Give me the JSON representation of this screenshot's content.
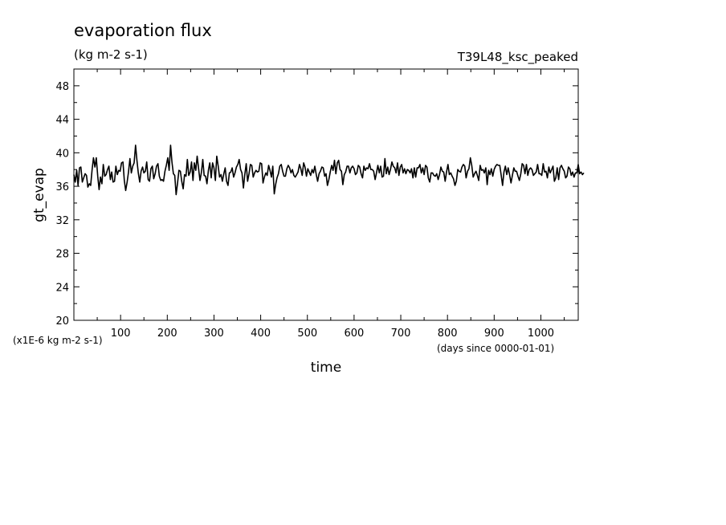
{
  "chart_data": {
    "type": "line",
    "title": "evaporation flux",
    "subtitle": "(kg m-2 s-1)",
    "run_label": "T39L48_ksc_peaked",
    "xlabel": "time",
    "x_units": "(days since 0000-01-01)",
    "ylabel": "gt_evap",
    "y_units": "(x1E-6 kg m-2 s-1)",
    "xlim": [
      0,
      1080
    ],
    "ylim": [
      20,
      50
    ],
    "x_ticks": [
      "100",
      "200",
      "300",
      "400",
      "500",
      "600",
      "700",
      "800",
      "900",
      "1000"
    ],
    "y_ticks": [
      "20",
      "24",
      "28",
      "32",
      "36",
      "40",
      "44",
      "48"
    ],
    "grid": false,
    "legend": "none",
    "line_color": "#000000",
    "series": [
      {
        "x_start": 0,
        "x_step": 3,
        "values": [
          37.4,
          36.5,
          37.9,
          36.1,
          38.2,
          38.3,
          36.5,
          37.0,
          37.5,
          37.3,
          35.9,
          36.3,
          36.1,
          38.0,
          39.4,
          38.3,
          39.4,
          37.2,
          35.6,
          37.1,
          36.3,
          38.6,
          37.2,
          37.4,
          38.0,
          38.4,
          36.8,
          37.7,
          36.5,
          36.6,
          38.4,
          37.4,
          37.9,
          37.8,
          38.8,
          38.9,
          36.7,
          35.5,
          36.5,
          37.7,
          39.3,
          37.6,
          38.4,
          38.8,
          40.9,
          39.1,
          37.6,
          36.5,
          37.8,
          38.3,
          37.6,
          37.8,
          38.9,
          36.8,
          36.6,
          38.1,
          38.4,
          36.9,
          37.5,
          38.4,
          38.7,
          37.2,
          36.7,
          36.8,
          36.6,
          37.8,
          38.5,
          39.4,
          37.9,
          40.9,
          38.9,
          37.5,
          37.3,
          35.0,
          36.4,
          37.9,
          37.8,
          36.6,
          35.7,
          37.4,
          37.2,
          39.2,
          37.3,
          37.7,
          38.9,
          36.7,
          38.8,
          37.9,
          39.6,
          38.1,
          36.7,
          37.6,
          39.2,
          37.3,
          37.2,
          36.3,
          37.9,
          38.8,
          37.0,
          38.8,
          38.2,
          36.7,
          39.6,
          38.4,
          37.1,
          37.4,
          36.6,
          37.5,
          38.2,
          36.6,
          36.1,
          37.6,
          37.7,
          38.2,
          37.1,
          37.6,
          38.3,
          38.6,
          39.2,
          38.0,
          37.6,
          35.8,
          37.4,
          38.7,
          36.6,
          37.5,
          38.6,
          38.5,
          37.1,
          37.6,
          37.9,
          37.7,
          37.8,
          38.8,
          38.7,
          36.4,
          37.1,
          37.6,
          37.3,
          38.5,
          37.9,
          37.1,
          38.4,
          35.1,
          36.2,
          37.0,
          37.5,
          38.4,
          38.6,
          37.8,
          37.2,
          37.2,
          38.1,
          38.5,
          38.2,
          37.6,
          38.0,
          37.3,
          37.1,
          37.4,
          37.7,
          38.6,
          38.1,
          37.3,
          38.8,
          38.3,
          37.2,
          38.1,
          37.7,
          37.3,
          38.0,
          37.6,
          38.4,
          37.4,
          36.6,
          37.5,
          37.8,
          38.3,
          38.2,
          37.2,
          37.5,
          36.1,
          36.8,
          37.7,
          38.5,
          37.9,
          39.1,
          37.5,
          38.8,
          39.1,
          38.0,
          37.8,
          36.2,
          37.4,
          37.7,
          38.4,
          38.4,
          37.6,
          38.2,
          38.4,
          38.1,
          37.4,
          37.6,
          38.5,
          38.3,
          37.5,
          37.0,
          38.4,
          37.9,
          38.2,
          38.1,
          38.7,
          38.0,
          38.0,
          37.8,
          36.8,
          37.6,
          38.5,
          37.6,
          38.4,
          37.1,
          37.2,
          39.3,
          37.5,
          38.3,
          37.4,
          38.0,
          38.9,
          38.4,
          38.2,
          37.6,
          38.8,
          37.3,
          38.3,
          38.6,
          37.6,
          38.1,
          37.5,
          38.0,
          37.9,
          37.6,
          38.1,
          37.0,
          38.2,
          37.1,
          38.2,
          38.2,
          38.6,
          37.6,
          38.2,
          37.4,
          38.5,
          38.3,
          37.0,
          36.5,
          37.6,
          37.6,
          37.3,
          37.2,
          37.5,
          36.8,
          37.4,
          38.3,
          37.8,
          37.7,
          36.6,
          37.7,
          38.6,
          37.4,
          37.6,
          37.2,
          36.9,
          36.1,
          36.6,
          38.0,
          37.8,
          37.7,
          38.3,
          38.6,
          38.4,
          37.0,
          37.8,
          38.1,
          39.4,
          38.5,
          37.1,
          37.5,
          37.8,
          37.3,
          36.7,
          38.5,
          37.9,
          38.0,
          37.6,
          38.2,
          36.2,
          37.9,
          37.4,
          38.1,
          37.2,
          38.0,
          38.4,
          38.6,
          38.5,
          38.5,
          37.3,
          36.1,
          37.7,
          38.4,
          37.4,
          38.2,
          37.4,
          36.4,
          37.3,
          38.2,
          37.8,
          37.8,
          37.2,
          36.7,
          37.5,
          38.7,
          38.5,
          37.5,
          38.6,
          37.3,
          38.0,
          38.2,
          38.0,
          37.3,
          37.5,
          37.7,
          38.6,
          37.5,
          37.5,
          37.3,
          38.7,
          37.7,
          37.8,
          37.0,
          38.3,
          37.6,
          38.0,
          38.4,
          36.6,
          37.0,
          38.2,
          36.8,
          38.2,
          38.5,
          38.1,
          37.8,
          37.0,
          37.2,
          38.3,
          38.1,
          37.3,
          37.7,
          37.1,
          37.6,
          37.6,
          38.6,
          37.5,
          37.7,
          37.4,
          37.6
        ]
      }
    ]
  }
}
